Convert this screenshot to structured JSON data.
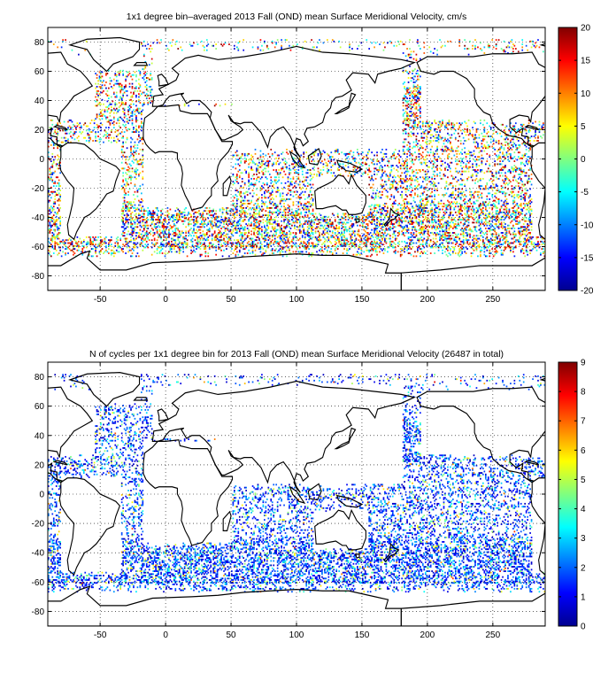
{
  "panels": [
    {
      "title": "1x1 degree bin–averaged 2013 Fall (OND) mean Surface Meridional Velocity, cm/s",
      "x_ticks": [
        "-50",
        "0",
        "50",
        "100",
        "150",
        "200",
        "250"
      ],
      "y_ticks": [
        "80",
        "60",
        "40",
        "20",
        "0",
        "-20",
        "-40",
        "-60",
        "-80"
      ],
      "colorbar_ticks": [
        "20",
        "15",
        "10",
        "5",
        "0",
        "-5",
        "-10",
        "-15",
        "-20"
      ],
      "colormap": "jet",
      "clim": [
        -20,
        20
      ],
      "grid": "dotted"
    },
    {
      "title": "N of cycles per 1x1 degree bin for 2013 Fall (OND) mean Surface Meridional Velocity (26487 in total)",
      "x_ticks": [
        "-50",
        "0",
        "50",
        "100",
        "150",
        "200",
        "250"
      ],
      "y_ticks": [
        "80",
        "60",
        "40",
        "20",
        "0",
        "-20",
        "-40",
        "-60",
        "-80"
      ],
      "colorbar_ticks": [
        "9",
        "8",
        "7",
        "6",
        "5",
        "4",
        "3",
        "2",
        "1",
        "0"
      ],
      "colormap": "jet",
      "clim": [
        0,
        9
      ],
      "grid": "dotted"
    }
  ],
  "map_extent": {
    "lon": [
      -90,
      290
    ],
    "lat": [
      -90,
      90
    ]
  },
  "colors": {
    "coastline": "#000000",
    "frame": "#000000",
    "grid": "#000000",
    "background": "#ffffff"
  }
}
